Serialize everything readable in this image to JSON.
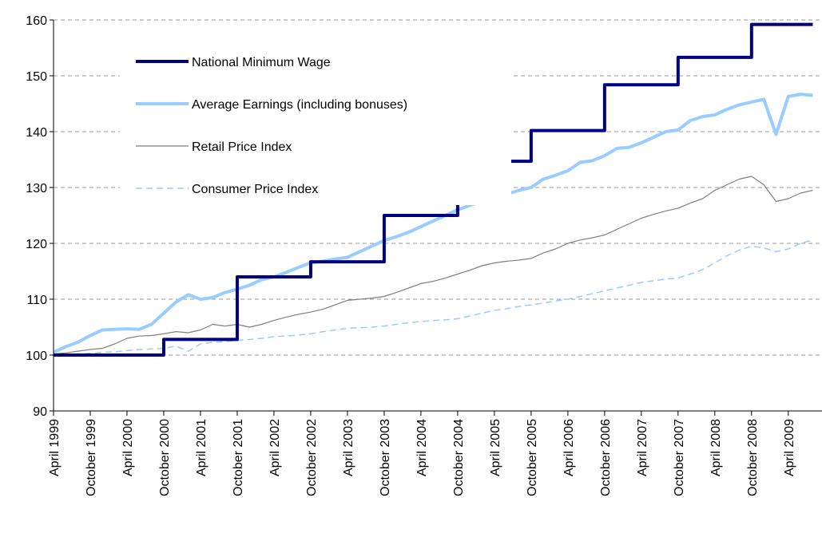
{
  "chart_data": {
    "type": "line",
    "categories": [
      "April 1999",
      null,
      null,
      "October 1999",
      null,
      null,
      "April 2000",
      null,
      null,
      "October 2000",
      null,
      null,
      "April 2001",
      null,
      null,
      "October 2001",
      null,
      null,
      "April 2002",
      null,
      null,
      "October 2002",
      null,
      null,
      "April 2003",
      null,
      null,
      "October 2003",
      null,
      null,
      "April 2004",
      null,
      null,
      "October 2004",
      null,
      null,
      "April 2005",
      null,
      null,
      "October 2005",
      null,
      null,
      "April 2006",
      null,
      null,
      "October 2006",
      null,
      null,
      "April 2007",
      null,
      null,
      "October 2007",
      null,
      null,
      "April 2008",
      null,
      null,
      "October 2008",
      null,
      null,
      "April 2009",
      null,
      null
    ],
    "ylim": [
      90,
      160
    ],
    "yticks": [
      90,
      100,
      110,
      120,
      130,
      140,
      150,
      160
    ],
    "grid": true,
    "legend": "upper left",
    "series": [
      {
        "name": "National Minimum Wage",
        "color": "#000080",
        "linewidth": 4,
        "linestyle": "solid",
        "step": true,
        "values": [
          100,
          100,
          100,
          100,
          100,
          100,
          100,
          100,
          100,
          102.8,
          102.8,
          102.8,
          102.8,
          102.8,
          102.8,
          114,
          114,
          114,
          114,
          114,
          114,
          116.7,
          116.7,
          116.7,
          116.7,
          116.7,
          116.7,
          125,
          125,
          125,
          125,
          125,
          125,
          134.7,
          134.7,
          134.7,
          134.7,
          134.7,
          134.7,
          140.2,
          140.2,
          140.2,
          140.2,
          140.2,
          140.2,
          148.4,
          148.4,
          148.4,
          148.4,
          148.4,
          148.4,
          153.3,
          153.3,
          153.3,
          153.3,
          153.3,
          153.3,
          159.2,
          159.2,
          159.2,
          159.2,
          159.2,
          159.2
        ]
      },
      {
        "name": "Average Earnings (including bonuses)",
        "color": "#99ccff",
        "linewidth": 4,
        "linestyle": "solid",
        "step": false,
        "values": [
          100.5,
          101.5,
          102.3,
          103.5,
          104.5,
          104.6,
          104.7,
          104.6,
          105.5,
          107.5,
          109.5,
          110.8,
          110,
          110.3,
          111.2,
          111.8,
          112.5,
          113.5,
          114,
          114.8,
          115.7,
          116.5,
          116.8,
          117.2,
          117.5,
          118.5,
          119.5,
          120.5,
          121.2,
          122,
          123,
          124,
          125,
          126,
          126.8,
          127.5,
          128,
          128.8,
          129.5,
          130,
          131.5,
          132.2,
          133,
          134.5,
          134.8,
          135.7,
          137,
          137.2,
          138,
          139,
          140,
          140.3,
          142,
          142.7,
          143,
          144,
          144.8,
          145.3,
          145.8,
          139.5,
          146.3,
          146.7,
          146.5
        ]
      },
      {
        "name": "Retail Price Index",
        "color": "#808080",
        "linewidth": 1.2,
        "linestyle": "solid",
        "step": false,
        "values": [
          100.2,
          100.4,
          100.7,
          101,
          101.2,
          102,
          103,
          103.4,
          103.5,
          103.8,
          104.2,
          104,
          104.5,
          105.5,
          105.2,
          105.5,
          105,
          105.5,
          106.2,
          106.8,
          107.3,
          107.7,
          108.2,
          109,
          109.8,
          110,
          110.2,
          110.5,
          111.2,
          112,
          112.8,
          113.2,
          113.8,
          114.5,
          115.2,
          116,
          116.5,
          116.8,
          117,
          117.3,
          118.3,
          119,
          120,
          120.6,
          121,
          121.5,
          122.5,
          123.5,
          124.5,
          125.2,
          125.8,
          126.3,
          127.2,
          128,
          129.5,
          130.5,
          131.5,
          132,
          130.5,
          127.5,
          128,
          129,
          129.5
        ]
      },
      {
        "name": "Consumer Price Index",
        "color": "#99ccff",
        "linewidth": 1.5,
        "linestyle": "dashed",
        "step": false,
        "values": [
          100,
          100.2,
          100.2,
          100.3,
          100.5,
          100.6,
          100.8,
          101,
          101.1,
          101.2,
          101.6,
          100.7,
          102,
          102.3,
          102.4,
          102.6,
          102.8,
          103,
          103.3,
          103.4,
          103.6,
          103.8,
          104.2,
          104.5,
          104.8,
          104.9,
          105,
          105.2,
          105.5,
          105.8,
          106,
          106.2,
          106.3,
          106.5,
          107,
          107.5,
          108,
          108.3,
          108.7,
          109,
          109.3,
          109.7,
          110,
          110.5,
          111,
          111.5,
          112,
          112.5,
          113,
          113.3,
          113.6,
          113.8,
          114.5,
          115.3,
          116.5,
          117.8,
          118.8,
          119.5,
          119.2,
          118.5,
          119,
          120,
          120.6
        ]
      }
    ]
  }
}
